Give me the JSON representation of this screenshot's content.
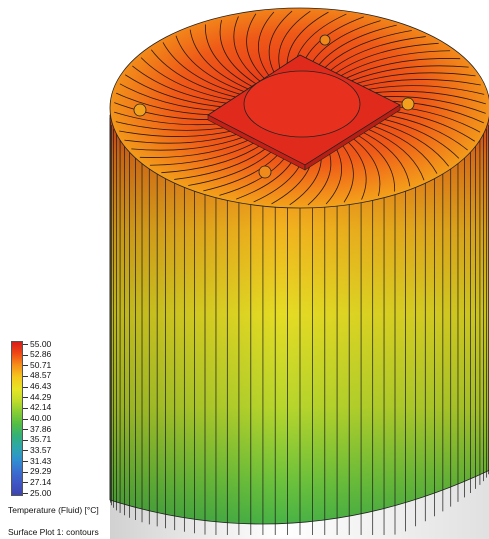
{
  "legend": {
    "title": "Temperature (Fluid) [°C]",
    "ticks": [
      "55.00",
      "52.86",
      "50.71",
      "48.57",
      "46.43",
      "44.29",
      "42.14",
      "40.00",
      "37.86",
      "35.71",
      "33.57",
      "31.43",
      "29.29",
      "27.14",
      "25.00"
    ],
    "min": 25.0,
    "max": 55.0,
    "colors": [
      "#d81c1c",
      "#f04a16",
      "#f7901a",
      "#f5c81e",
      "#e7e525",
      "#c0dc2a",
      "#86cc36",
      "#52bd44",
      "#33b07a",
      "#2fa6ad",
      "#3090d0",
      "#3a6fd0",
      "#3f56c4",
      "#3d45b0"
    ]
  },
  "plot_name": "Surface Plot 1: contours",
  "model": {
    "hot_color": "#e42a1c",
    "warm_color": "#f08a1a",
    "mid_color": "#e9d624",
    "cool_color": "#8ec63a",
    "cold_color": "#3fae4a",
    "fin_count": 64
  }
}
